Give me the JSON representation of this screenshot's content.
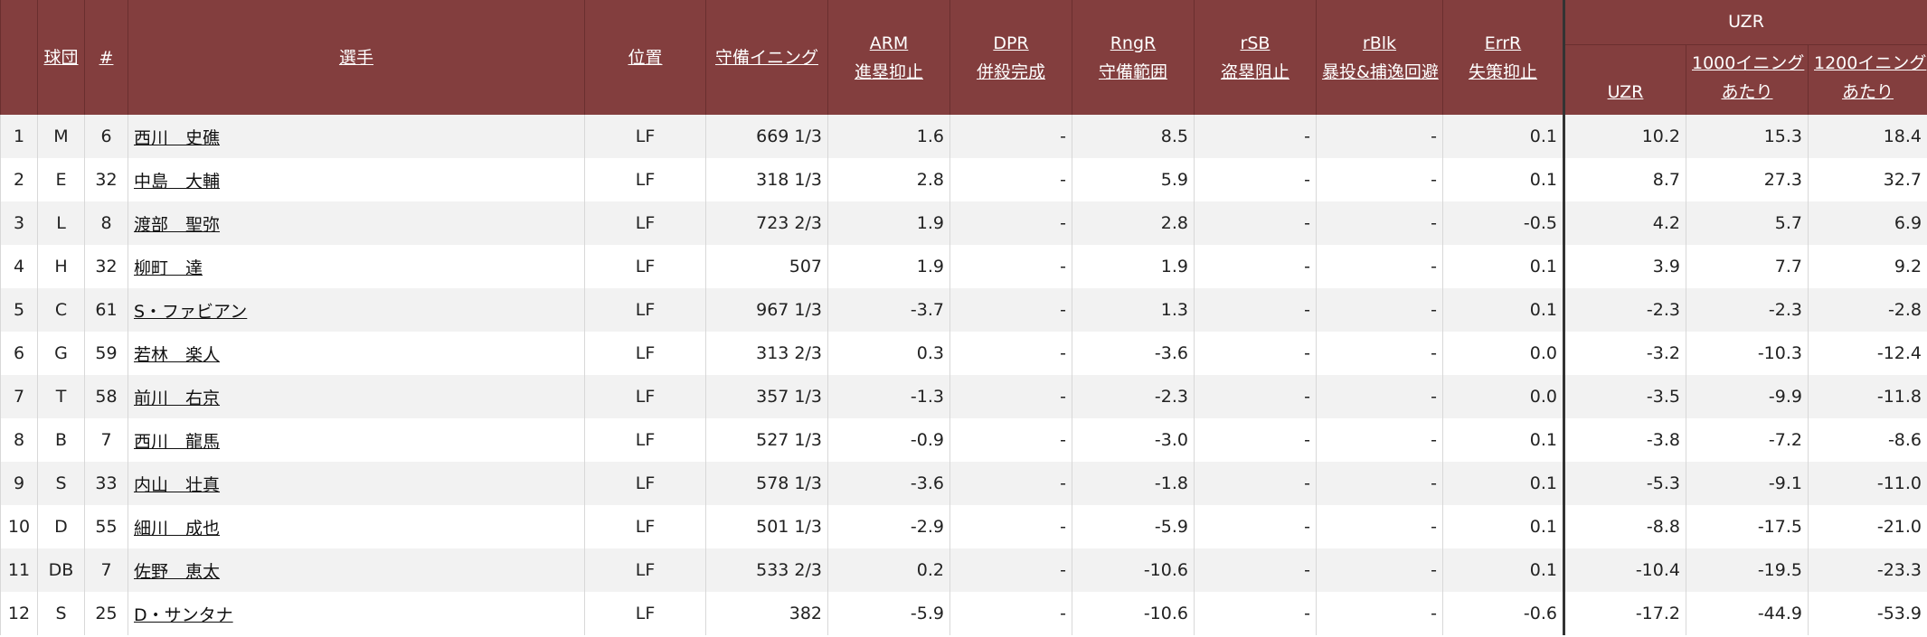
{
  "header": {
    "group_uzr": "UZR",
    "cols": {
      "rank": "",
      "team": "球団",
      "number": "#",
      "player": "選手",
      "position": "位置",
      "innings": "守備イニング",
      "arm": [
        "ARM",
        "進塁抑止"
      ],
      "dpr": [
        "DPR",
        "併殺完成"
      ],
      "rngr": [
        "RngR",
        "守備範囲"
      ],
      "rsb": [
        "rSB",
        "盗塁阻止"
      ],
      "rblk": [
        "rBlk",
        "暴投&捕逸回避"
      ],
      "errr": [
        "ErrR",
        "失策抑止"
      ],
      "uzr": "UZR",
      "per1000": [
        "1000イニング",
        "あたり"
      ],
      "per1200": [
        "1200イニング",
        "あたり"
      ]
    }
  },
  "rows": [
    {
      "rank": "1",
      "team": "M",
      "number": "6",
      "player": "西川　史礁",
      "position": "LF",
      "innings": "669 1/3",
      "arm": "1.6",
      "dpr": "-",
      "rngr": "8.5",
      "rsb": "-",
      "rblk": "-",
      "errr": "0.1",
      "uzr": "10.2",
      "per1000": "15.3",
      "per1200": "18.4"
    },
    {
      "rank": "2",
      "team": "E",
      "number": "32",
      "player": "中島　大輔",
      "position": "LF",
      "innings": "318 1/3",
      "arm": "2.8",
      "dpr": "-",
      "rngr": "5.9",
      "rsb": "-",
      "rblk": "-",
      "errr": "0.1",
      "uzr": "8.7",
      "per1000": "27.3",
      "per1200": "32.7"
    },
    {
      "rank": "3",
      "team": "L",
      "number": "8",
      "player": "渡部　聖弥",
      "position": "LF",
      "innings": "723 2/3",
      "arm": "1.9",
      "dpr": "-",
      "rngr": "2.8",
      "rsb": "-",
      "rblk": "-",
      "errr": "-0.5",
      "uzr": "4.2",
      "per1000": "5.7",
      "per1200": "6.9"
    },
    {
      "rank": "4",
      "team": "H",
      "number": "32",
      "player": "柳町　達",
      "position": "LF",
      "innings": "507",
      "arm": "1.9",
      "dpr": "-",
      "rngr": "1.9",
      "rsb": "-",
      "rblk": "-",
      "errr": "0.1",
      "uzr": "3.9",
      "per1000": "7.7",
      "per1200": "9.2"
    },
    {
      "rank": "5",
      "team": "C",
      "number": "61",
      "player": "S・ファビアン",
      "position": "LF",
      "innings": "967 1/3",
      "arm": "-3.7",
      "dpr": "-",
      "rngr": "1.3",
      "rsb": "-",
      "rblk": "-",
      "errr": "0.1",
      "uzr": "-2.3",
      "per1000": "-2.3",
      "per1200": "-2.8"
    },
    {
      "rank": "6",
      "team": "G",
      "number": "59",
      "player": "若林　楽人",
      "position": "LF",
      "innings": "313 2/3",
      "arm": "0.3",
      "dpr": "-",
      "rngr": "-3.6",
      "rsb": "-",
      "rblk": "-",
      "errr": "0.0",
      "uzr": "-3.2",
      "per1000": "-10.3",
      "per1200": "-12.4"
    },
    {
      "rank": "7",
      "team": "T",
      "number": "58",
      "player": "前川　右京",
      "position": "LF",
      "innings": "357 1/3",
      "arm": "-1.3",
      "dpr": "-",
      "rngr": "-2.3",
      "rsb": "-",
      "rblk": "-",
      "errr": "0.0",
      "uzr": "-3.5",
      "per1000": "-9.9",
      "per1200": "-11.8"
    },
    {
      "rank": "8",
      "team": "B",
      "number": "7",
      "player": "西川　龍馬",
      "position": "LF",
      "innings": "527 1/3",
      "arm": "-0.9",
      "dpr": "-",
      "rngr": "-3.0",
      "rsb": "-",
      "rblk": "-",
      "errr": "0.1",
      "uzr": "-3.8",
      "per1000": "-7.2",
      "per1200": "-8.6"
    },
    {
      "rank": "9",
      "team": "S",
      "number": "33",
      "player": "内山　壮真",
      "position": "LF",
      "innings": "578 1/3",
      "arm": "-3.6",
      "dpr": "-",
      "rngr": "-1.8",
      "rsb": "-",
      "rblk": "-",
      "errr": "0.1",
      "uzr": "-5.3",
      "per1000": "-9.1",
      "per1200": "-11.0"
    },
    {
      "rank": "10",
      "team": "D",
      "number": "55",
      "player": "細川　成也",
      "position": "LF",
      "innings": "501 1/3",
      "arm": "-2.9",
      "dpr": "-",
      "rngr": "-5.9",
      "rsb": "-",
      "rblk": "-",
      "errr": "0.1",
      "uzr": "-8.8",
      "per1000": "-17.5",
      "per1200": "-21.0"
    },
    {
      "rank": "11",
      "team": "DB",
      "number": "7",
      "player": "佐野　恵太",
      "position": "LF",
      "innings": "533 2/3",
      "arm": "0.2",
      "dpr": "-",
      "rngr": "-10.6",
      "rsb": "-",
      "rblk": "-",
      "errr": "0.1",
      "uzr": "-10.4",
      "per1000": "-19.5",
      "per1200": "-23.3"
    },
    {
      "rank": "12",
      "team": "S",
      "number": "25",
      "player": "D・サンタナ",
      "position": "LF",
      "innings": "382",
      "arm": "-5.9",
      "dpr": "-",
      "rngr": "-10.6",
      "rsb": "-",
      "rblk": "-",
      "errr": "-0.6",
      "uzr": "-17.2",
      "per1000": "-44.9",
      "per1200": "-53.9"
    }
  ]
}
